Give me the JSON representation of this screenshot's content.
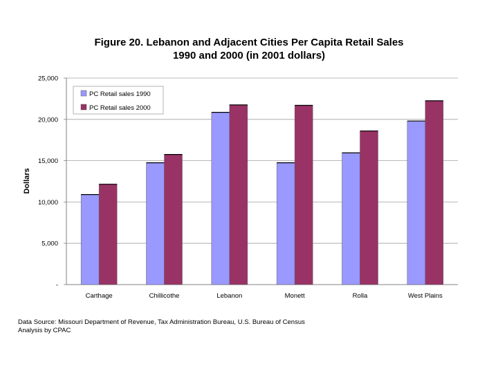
{
  "chart_data": {
    "type": "bar",
    "title": [
      "Figure 20. Lebanon and Adjacent Cities Per Capita Retail Sales",
      "1990 and 2000 (in 2001 dollars)"
    ],
    "xlabel": "",
    "ylabel": "Dollars",
    "ylim": [
      0,
      25000
    ],
    "yticks": [
      0,
      5000,
      10000,
      15000,
      20000,
      25000
    ],
    "ytick_labels": [
      "-",
      "5,000",
      "10,000",
      "15,000",
      "20,000",
      "25,000"
    ],
    "grid": true,
    "legend_position": "top-left",
    "categories": [
      "Carthage",
      "Chillicothe",
      "Lebanon",
      "Monett",
      "Rolla",
      "West Plains"
    ],
    "series": [
      {
        "name": "PC Retail sales 1990",
        "color": "#9999ff",
        "values": [
          10900,
          14750,
          20850,
          14750,
          15950,
          19800
        ]
      },
      {
        "name": "PC Retail sales 2000",
        "color": "#993366",
        "values": [
          12150,
          15750,
          21750,
          21700,
          18600,
          22250
        ]
      }
    ]
  },
  "footer": {
    "source_line": "Data Source: Missouri Department of Revenue,  Tax Administration Bureau, U.S. Bureau of Census",
    "analysis_line": "Analysis by CPAC"
  }
}
